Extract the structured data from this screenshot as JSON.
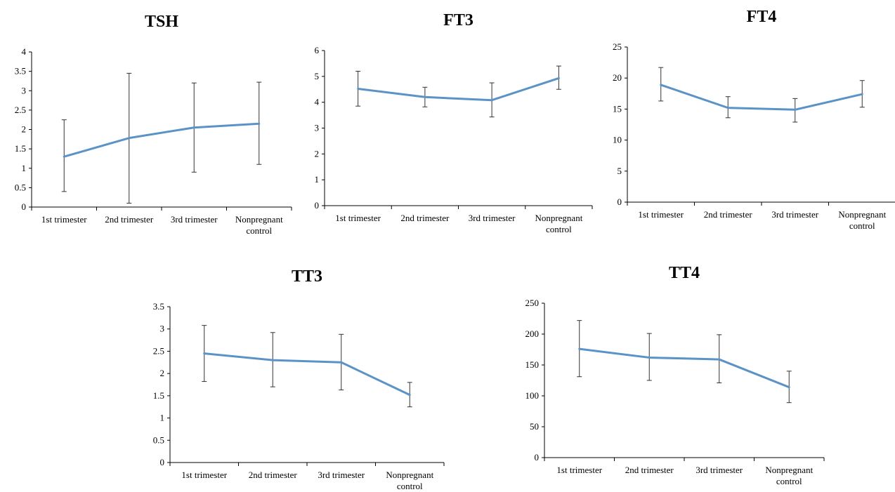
{
  "colors": {
    "line": "#5b93c7",
    "error_bar": "#333333",
    "axis": "#000000"
  },
  "chart_data": [
    {
      "type": "line",
      "title": "TSH",
      "categories": [
        "1st trimester",
        "2nd trimester",
        "3rd trimester",
        "Nonpregnant control"
      ],
      "values": [
        1.3,
        1.78,
        2.05,
        2.15
      ],
      "error_low": [
        0.4,
        0.1,
        0.9,
        1.1
      ],
      "error_high": [
        2.25,
        3.45,
        3.2,
        3.22
      ],
      "yticks": [
        "0",
        "0.5",
        "1",
        "1.5",
        "2",
        "2.5",
        "3",
        "3.5",
        "4"
      ],
      "ylim": [
        0,
        4
      ]
    },
    {
      "type": "line",
      "title": "FT3",
      "categories": [
        "1st trimester",
        "2nd trimester",
        "3rd trimester",
        "Nonpregnant control"
      ],
      "values": [
        4.52,
        4.2,
        4.08,
        4.93
      ],
      "error_low": [
        3.85,
        3.82,
        3.43,
        4.5
      ],
      "error_high": [
        5.2,
        4.58,
        4.75,
        5.4
      ],
      "yticks": [
        "0",
        "1",
        "2",
        "3",
        "4",
        "5",
        "6"
      ],
      "ylim": [
        0,
        6
      ]
    },
    {
      "type": "line",
      "title": "FT4",
      "categories": [
        "1st trimester",
        "2nd trimester",
        "3rd trimester",
        "Nonpregnant control"
      ],
      "values": [
        18.9,
        15.2,
        14.9,
        17.4
      ],
      "error_low": [
        16.3,
        13.6,
        12.9,
        15.3
      ],
      "error_high": [
        21.7,
        17.0,
        16.7,
        19.6
      ],
      "yticks": [
        "0",
        "5",
        "10",
        "15",
        "20",
        "25"
      ],
      "ylim": [
        0,
        25
      ]
    },
    {
      "type": "line",
      "title": "TT3",
      "categories": [
        "1st trimester",
        "2nd trimester",
        "3rd trimester",
        "Nonpregnant control"
      ],
      "values": [
        2.45,
        2.3,
        2.25,
        1.52
      ],
      "error_low": [
        1.82,
        1.7,
        1.63,
        1.25
      ],
      "error_high": [
        3.08,
        2.92,
        2.88,
        1.8
      ],
      "yticks": [
        "0",
        "0.5",
        "1",
        "1.5",
        "2",
        "2.5",
        "3",
        "3.5"
      ],
      "ylim": [
        0,
        3.5
      ]
    },
    {
      "type": "line",
      "title": "TT4",
      "categories": [
        "1st trimester",
        "2nd trimester",
        "3rd trimester",
        "Nonpregnant control"
      ],
      "values": [
        176,
        162,
        159,
        114
      ],
      "error_low": [
        131,
        125,
        121,
        89
      ],
      "error_high": [
        222,
        201,
        199,
        140
      ],
      "yticks": [
        "0",
        "50",
        "100",
        "150",
        "200",
        "250"
      ],
      "ylim": [
        0,
        250
      ]
    }
  ]
}
